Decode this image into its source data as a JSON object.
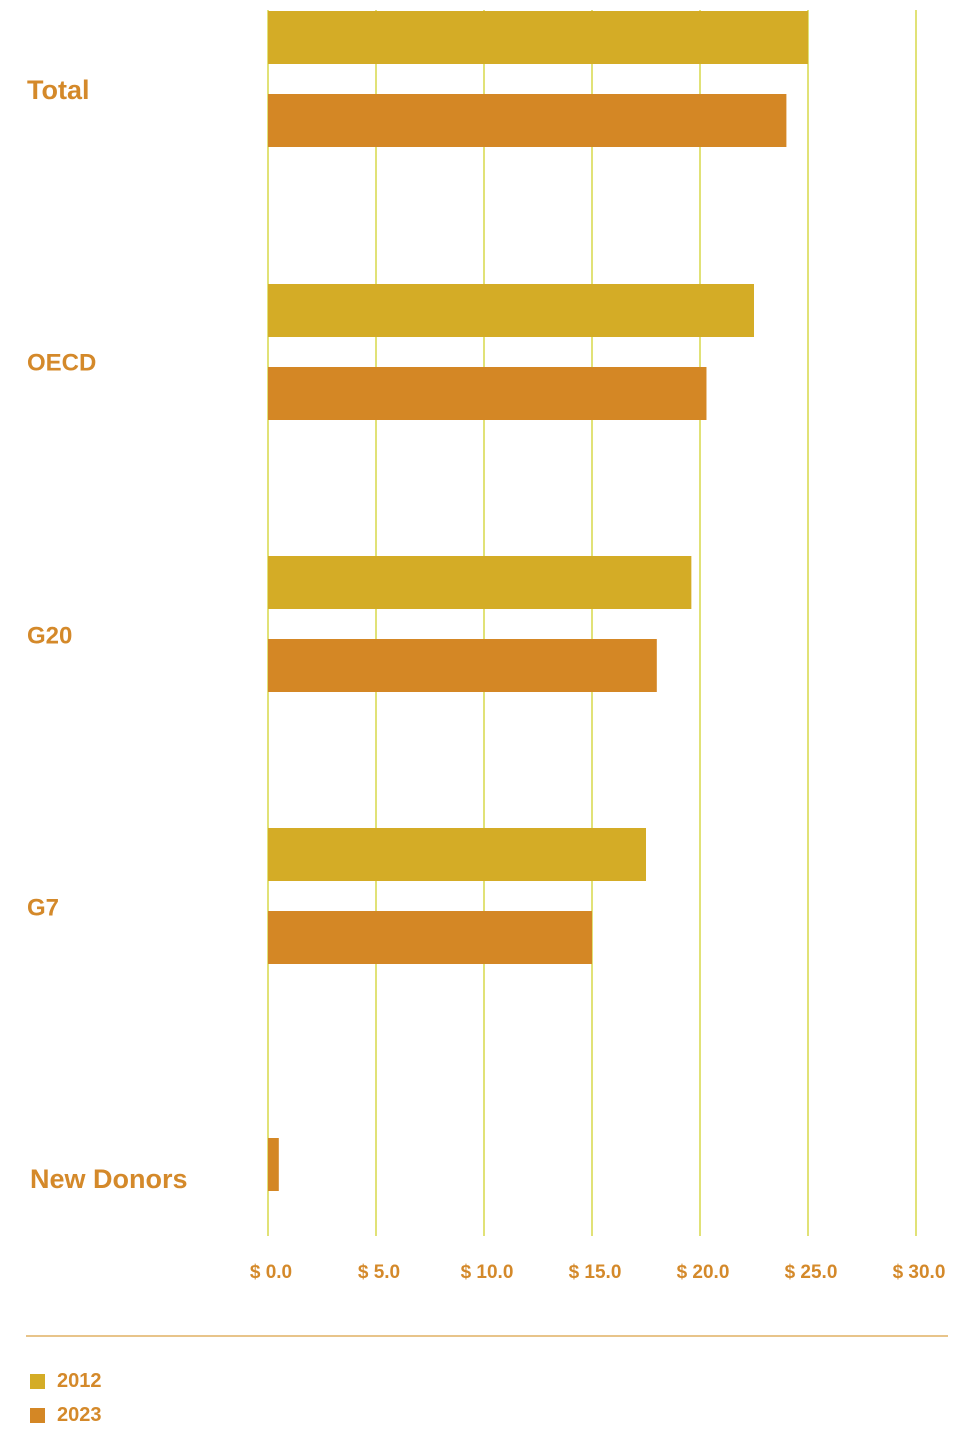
{
  "chart_data": {
    "type": "bar",
    "orientation": "horizontal",
    "categories": [
      "Total",
      "OECD",
      "G20",
      "G7",
      "New Donors"
    ],
    "series": [
      {
        "name": "2012",
        "color": "#d4ac26",
        "values": [
          25.0,
          22.5,
          19.6,
          17.5,
          null
        ]
      },
      {
        "name": "2023",
        "color": "#d48725",
        "values": [
          24.0,
          20.3,
          18.0,
          15.0,
          0.5
        ]
      }
    ],
    "xlim": [
      0,
      30
    ],
    "x_ticks": [
      0,
      5,
      10,
      15,
      20,
      25,
      30
    ],
    "x_tick_labels": [
      "$ 0.0",
      "$ 5.0",
      "$ 10.0",
      "$ 15.0",
      "$ 20.0",
      "$ 25.0",
      "$ 30.0"
    ],
    "grid": true,
    "grid_color": "#d7d84a",
    "label_color": "#d4892a",
    "legend_position": "bottom-left"
  }
}
